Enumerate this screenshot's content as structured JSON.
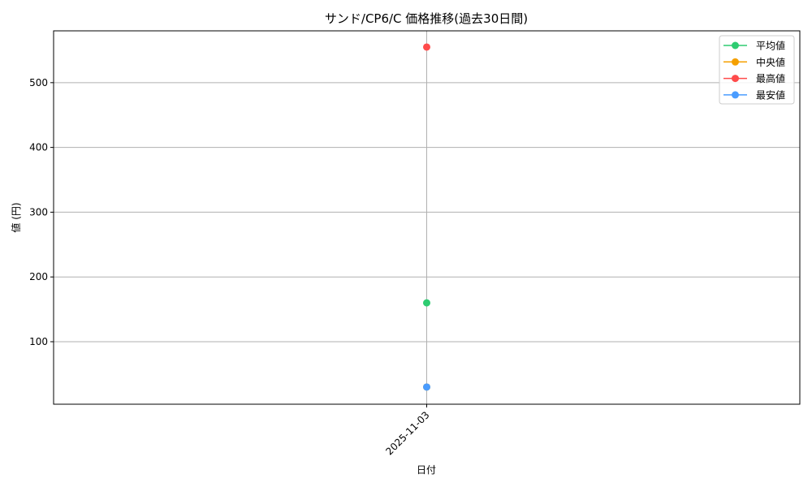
{
  "chart_data": {
    "type": "line",
    "title": "サンド/CP6/C 価格推移(過去30日間)",
    "xlabel": "日付",
    "ylabel": "値 (円)",
    "categories": [
      "2025-11-03"
    ],
    "ylim": [
      3.5,
      580
    ],
    "yticks": [
      100,
      200,
      300,
      400,
      500
    ],
    "grid": true,
    "legend_position": "top-right",
    "series": [
      {
        "name": "平均値",
        "values": [
          160
        ],
        "color": "#2ecc71"
      },
      {
        "name": "中央値",
        "values": [
          30
        ],
        "color": "#f5a000"
      },
      {
        "name": "最高値",
        "values": [
          555
        ],
        "color": "#ff4b4b"
      },
      {
        "name": "最安値",
        "values": [
          30
        ],
        "color": "#4a9cff"
      }
    ]
  }
}
